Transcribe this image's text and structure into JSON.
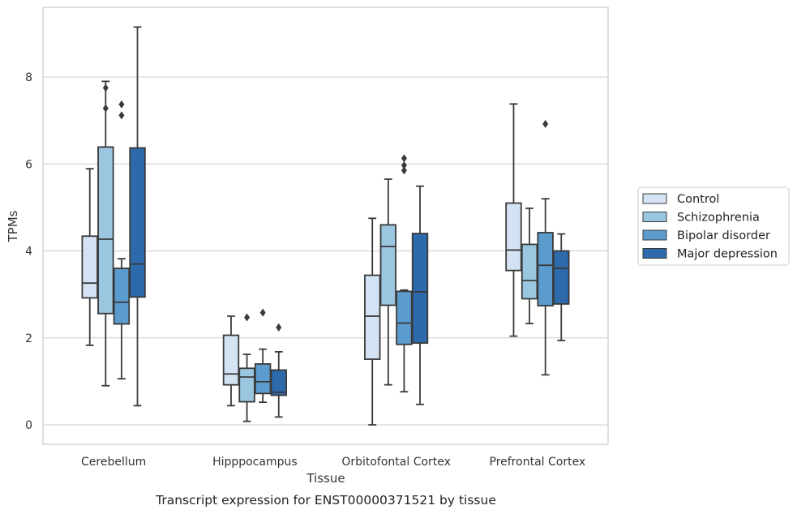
{
  "caption": "Transcript expression for ENST00000371521 by tissue",
  "chart_data": {
    "type": "boxplot",
    "xlabel": "Tissue",
    "ylabel": "TPMs",
    "ylim": [
      -0.45,
      9.6
    ],
    "yticks": [
      0,
      2,
      4,
      6,
      8
    ],
    "grid": "horizontal",
    "legend_position": "right",
    "categories": [
      "Cerebellum",
      "Hipppocampus",
      "Orbitofontal Cortex",
      "Prefrontal Cortex"
    ],
    "series": [
      {
        "name": "Control",
        "color": "#d4e3f3",
        "boxes": [
          {
            "whislo": 1.83,
            "q1": 2.92,
            "med": 3.26,
            "q3": 4.34,
            "whishi": 5.89,
            "fliers": []
          },
          {
            "whislo": 0.44,
            "q1": 0.92,
            "med": 1.17,
            "q3": 2.06,
            "whishi": 2.5,
            "fliers": []
          },
          {
            "whislo": 0.0,
            "q1": 1.51,
            "med": 2.5,
            "q3": 3.44,
            "whishi": 4.75,
            "fliers": []
          },
          {
            "whislo": 2.04,
            "q1": 3.55,
            "med": 4.02,
            "q3": 5.1,
            "whishi": 7.38,
            "fliers": []
          }
        ]
      },
      {
        "name": "Schizophrenia",
        "color": "#9ac6e0",
        "boxes": [
          {
            "whislo": 0.9,
            "q1": 2.56,
            "med": 4.27,
            "q3": 6.39,
            "whishi": 7.9,
            "fliers": [
              7.28,
              7.75
            ]
          },
          {
            "whislo": 0.08,
            "q1": 0.53,
            "med": 1.1,
            "q3": 1.3,
            "whishi": 1.62,
            "fliers": [
              2.47
            ]
          },
          {
            "whislo": 0.92,
            "q1": 2.75,
            "med": 4.1,
            "q3": 4.6,
            "whishi": 5.65,
            "fliers": []
          },
          {
            "whislo": 2.33,
            "q1": 2.9,
            "med": 3.32,
            "q3": 4.15,
            "whishi": 4.98,
            "fliers": []
          }
        ]
      },
      {
        "name": "Bipolar disorder",
        "color": "#5b9bcd",
        "boxes": [
          {
            "whislo": 1.06,
            "q1": 2.32,
            "med": 2.82,
            "q3": 3.6,
            "whishi": 3.82,
            "fliers": [
              7.12,
              7.37
            ]
          },
          {
            "whislo": 0.52,
            "q1": 0.72,
            "med": 0.99,
            "q3": 1.4,
            "whishi": 1.74,
            "fliers": [
              2.58
            ]
          },
          {
            "whislo": 0.76,
            "q1": 1.85,
            "med": 2.34,
            "q3": 3.07,
            "whishi": 3.1,
            "fliers": [
              5.85,
              5.97,
              6.13
            ]
          },
          {
            "whislo": 1.15,
            "q1": 2.74,
            "med": 3.67,
            "q3": 4.42,
            "whishi": 5.2,
            "fliers": [
              6.92
            ]
          }
        ]
      },
      {
        "name": "Major depression",
        "color": "#2c6aab",
        "boxes": [
          {
            "whislo": 0.44,
            "q1": 2.94,
            "med": 3.7,
            "q3": 6.37,
            "whishi": 9.15,
            "fliers": []
          },
          {
            "whislo": 0.18,
            "q1": 0.68,
            "med": 0.75,
            "q3": 1.26,
            "whishi": 1.68,
            "fliers": [
              2.24
            ]
          },
          {
            "whislo": 0.47,
            "q1": 1.88,
            "med": 3.06,
            "q3": 4.4,
            "whishi": 5.49,
            "fliers": []
          },
          {
            "whislo": 1.94,
            "q1": 2.78,
            "med": 3.6,
            "q3": 4.0,
            "whishi": 4.39,
            "fliers": []
          }
        ]
      }
    ]
  }
}
